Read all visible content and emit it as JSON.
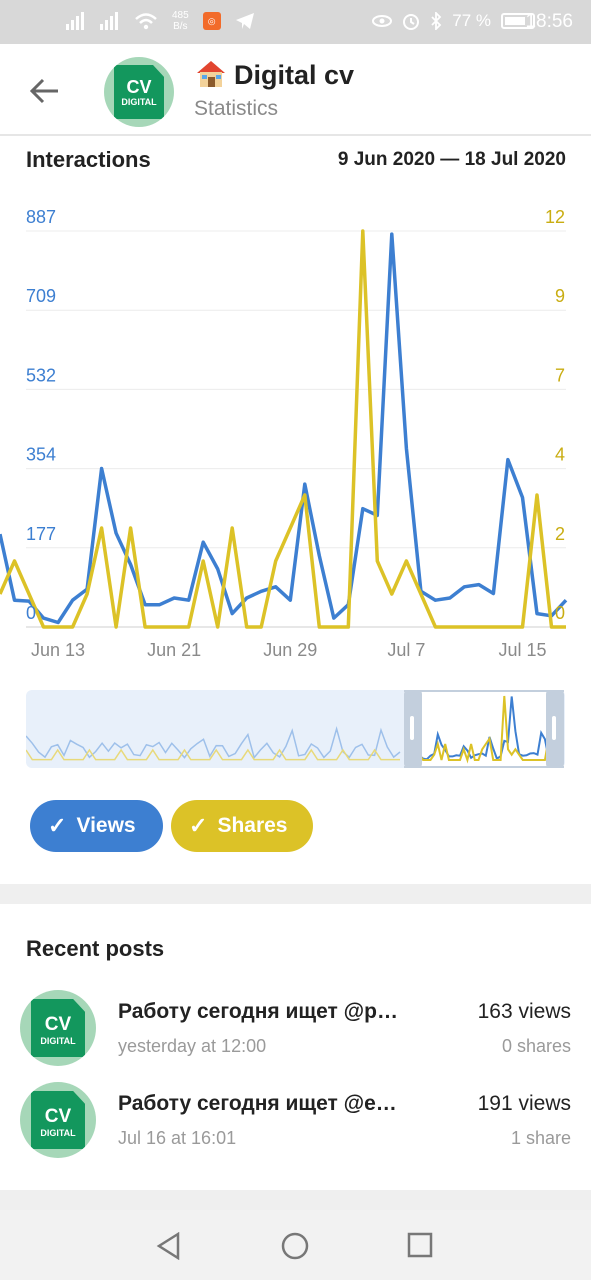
{
  "statusbar": {
    "net_speed": "485\nB/s",
    "battery": "77 %",
    "time": "18:56"
  },
  "header": {
    "title": "Digital cv",
    "subtitle": "Statistics",
    "avatar_text": "CV",
    "avatar_sub": "DIGITAL"
  },
  "chart_section": {
    "title": "Interactions",
    "date_range": "9 Jun 2020 — 18 Jul 2020"
  },
  "chart_data": {
    "type": "line",
    "title": "Interactions",
    "left_axis_ticks": [
      "887",
      "709",
      "532",
      "354",
      "177",
      "0"
    ],
    "right_axis_ticks": [
      "12",
      "9",
      "7",
      "4",
      "2",
      "0"
    ],
    "x_ticks": [
      "Jun 13",
      "Jun 21",
      "Jun 29",
      "Jul 7",
      "Jul 15"
    ],
    "x_tick_days": [
      4,
      12,
      20,
      28,
      36
    ],
    "ylim_left": [
      0,
      887
    ],
    "ylim_right": [
      0,
      12
    ],
    "x": [
      "2020-06-09",
      "2020-06-10",
      "2020-06-11",
      "2020-06-12",
      "2020-06-13",
      "2020-06-14",
      "2020-06-15",
      "2020-06-16",
      "2020-06-17",
      "2020-06-18",
      "2020-06-19",
      "2020-06-20",
      "2020-06-21",
      "2020-06-22",
      "2020-06-23",
      "2020-06-24",
      "2020-06-25",
      "2020-06-26",
      "2020-06-27",
      "2020-06-28",
      "2020-06-29",
      "2020-06-30",
      "2020-07-01",
      "2020-07-02",
      "2020-07-03",
      "2020-07-04",
      "2020-07-05",
      "2020-07-06",
      "2020-07-07",
      "2020-07-08",
      "2020-07-09",
      "2020-07-10",
      "2020-07-11",
      "2020-07-12",
      "2020-07-13",
      "2020-07-14",
      "2020-07-15",
      "2020-07-16",
      "2020-07-17",
      "2020-07-18"
    ],
    "series": [
      {
        "name": "Views",
        "color": "#3d7fd1",
        "axis": "left",
        "values": [
          208,
          60,
          58,
          20,
          10,
          60,
          85,
          355,
          210,
          140,
          50,
          50,
          65,
          60,
          190,
          130,
          30,
          65,
          80,
          90,
          60,
          320,
          160,
          20,
          50,
          265,
          250,
          880,
          400,
          80,
          60,
          65,
          90,
          95,
          75,
          375,
          290,
          30,
          25,
          60
        ]
      },
      {
        "name": "Shares",
        "color": "#dcc227",
        "axis": "right",
        "values": [
          1,
          2,
          1,
          0,
          0,
          0,
          1,
          3,
          0,
          3,
          0,
          0,
          0,
          0,
          2,
          0,
          3,
          0,
          0,
          2,
          3,
          4,
          0,
          0,
          0,
          12,
          2,
          1,
          2,
          1,
          0,
          0,
          0,
          0,
          0,
          0,
          0,
          4,
          0,
          0
        ]
      }
    ],
    "grid": true
  },
  "toggles": {
    "views_label": "Views",
    "shares_label": "Shares",
    "views_color": "#3d7fd1",
    "shares_color": "#dcc227"
  },
  "recent": {
    "title": "Recent posts",
    "posts": [
      {
        "title": "Работу сегодня ищет @р…",
        "date": "yesterday at 12:00",
        "views": "163 views",
        "shares": "0 shares"
      },
      {
        "title": "Работу сегодня ищет @е…",
        "date": "Jul 16 at 16:01",
        "views": "191 views",
        "shares": "1 share"
      }
    ]
  }
}
